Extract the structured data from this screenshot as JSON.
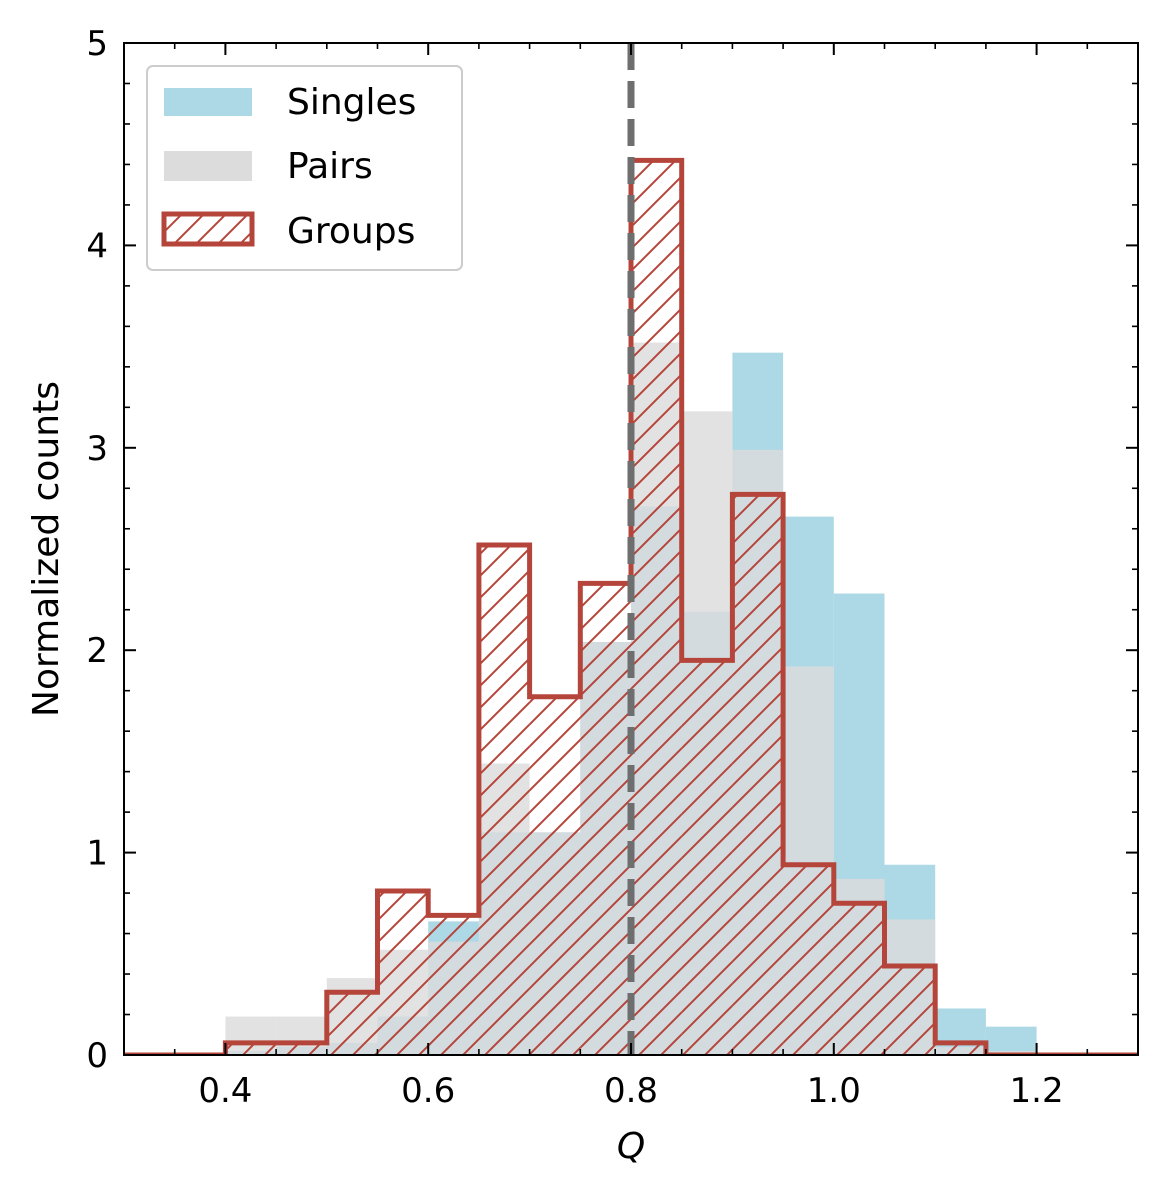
{
  "chart_data": {
    "type": "histogram",
    "title": "",
    "xlabel": "Q",
    "ylabel": "Normalized counts",
    "xlim": [
      0.3,
      1.3
    ],
    "ylim": [
      0,
      5
    ],
    "x_ticks": [
      0.4,
      0.6,
      0.8,
      1.0,
      1.2
    ],
    "x_tick_labels": [
      "0.4",
      "0.6",
      "0.8",
      "1.0",
      "1.2"
    ],
    "y_ticks": [
      0,
      1,
      2,
      3,
      4,
      5
    ],
    "y_tick_labels": [
      "0",
      "1",
      "2",
      "3",
      "4",
      "5"
    ],
    "bin_edges": [
      0.4,
      0.45,
      0.5,
      0.55,
      0.6,
      0.65,
      0.7,
      0.75,
      0.8,
      0.85,
      0.9,
      0.95,
      1.0,
      1.05,
      1.1,
      1.15,
      1.2
    ],
    "series": [
      {
        "name": "Singles",
        "style": "filled",
        "color": "#add8e6",
        "values": [
          0.02,
          0.04,
          0.06,
          0.19,
          0.66,
          1.1,
          1.1,
          2.04,
          2.71,
          2.19,
          3.47,
          2.66,
          2.28,
          0.94,
          0.23,
          0.14
        ]
      },
      {
        "name": "Pairs",
        "style": "filled",
        "color": "#dcdcdc",
        "values": [
          0.19,
          0.19,
          0.38,
          0.52,
          0.56,
          1.44,
          1.1,
          2.04,
          3.52,
          3.18,
          2.99,
          1.92,
          0.87,
          0.67,
          0.04,
          0.02
        ]
      },
      {
        "name": "Groups",
        "style": "step-hatched",
        "color": "#b5453a",
        "values": [
          0.06,
          0.06,
          0.31,
          0.81,
          0.69,
          2.52,
          1.77,
          2.33,
          4.42,
          1.95,
          2.77,
          0.94,
          0.75,
          0.44,
          0.06,
          0.0
        ]
      }
    ],
    "reference_line": {
      "x": 0.8,
      "style": "dashed",
      "color": "#6e6e6e"
    },
    "legend": {
      "position": "top-left",
      "entries": [
        "Singles",
        "Pairs",
        "Groups"
      ]
    }
  }
}
